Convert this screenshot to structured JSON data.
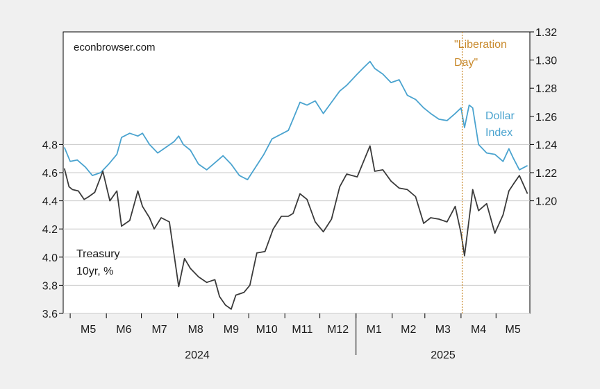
{
  "chart_data": {
    "type": "line",
    "watermark": "econbrowser.com",
    "annotation": {
      "lines": [
        "\"Liberation",
        "Day\""
      ],
      "date": "2025-04-02",
      "color": "#c8892b"
    },
    "x_axis": {
      "month_labels": [
        "M5",
        "M6",
        "M7",
        "M8",
        "M9",
        "M10",
        "M11",
        "M12",
        "M1",
        "M2",
        "M3",
        "M4",
        "M5"
      ],
      "year_labels": [
        "2024",
        "2025"
      ],
      "range": [
        "2024-04-25",
        "2025-05-30"
      ]
    },
    "y_axis_left": {
      "ticks": [
        "3.6",
        "3.8",
        "4.0",
        "4.2",
        "4.4",
        "4.6",
        "4.8"
      ],
      "range": [
        3.6,
        5.6
      ]
    },
    "y_axis_right": {
      "ticks": [
        "1.20",
        "1.22",
        "1.24",
        "1.26",
        "1.28",
        "1.30",
        "1.32"
      ],
      "range": [
        1.12,
        1.32
      ]
    },
    "grid": true,
    "series": [
      {
        "name_lines": [
          "Dollar",
          "Index"
        ],
        "axis": "right",
        "color": "#4aa3cf",
        "points": [
          [
            "2024-04-26",
            1.238
          ],
          [
            "2024-05-01",
            1.228
          ],
          [
            "2024-05-07",
            1.229
          ],
          [
            "2024-05-14",
            1.224
          ],
          [
            "2024-05-20",
            1.218
          ],
          [
            "2024-05-27",
            1.22
          ],
          [
            "2024-06-03",
            1.226
          ],
          [
            "2024-06-10",
            1.233
          ],
          [
            "2024-06-14",
            1.245
          ],
          [
            "2024-06-21",
            1.248
          ],
          [
            "2024-06-28",
            1.246
          ],
          [
            "2024-07-02",
            1.248
          ],
          [
            "2024-07-08",
            1.24
          ],
          [
            "2024-07-15",
            1.234
          ],
          [
            "2024-07-22",
            1.238
          ],
          [
            "2024-07-29",
            1.242
          ],
          [
            "2024-08-02",
            1.246
          ],
          [
            "2024-08-06",
            1.24
          ],
          [
            "2024-08-12",
            1.236
          ],
          [
            "2024-08-19",
            1.226
          ],
          [
            "2024-08-26",
            1.222
          ],
          [
            "2024-09-02",
            1.227
          ],
          [
            "2024-09-09",
            1.232
          ],
          [
            "2024-09-16",
            1.226
          ],
          [
            "2024-09-23",
            1.218
          ],
          [
            "2024-09-30",
            1.215
          ],
          [
            "2024-10-07",
            1.224
          ],
          [
            "2024-10-14",
            1.233
          ],
          [
            "2024-10-21",
            1.244
          ],
          [
            "2024-10-28",
            1.247
          ],
          [
            "2024-11-04",
            1.25
          ],
          [
            "2024-11-08",
            1.258
          ],
          [
            "2024-11-14",
            1.27
          ],
          [
            "2024-11-20",
            1.268
          ],
          [
            "2024-11-27",
            1.271
          ],
          [
            "2024-12-04",
            1.262
          ],
          [
            "2024-12-11",
            1.27
          ],
          [
            "2024-12-18",
            1.278
          ],
          [
            "2024-12-24",
            1.282
          ],
          [
            "2025-01-02",
            1.29
          ],
          [
            "2025-01-08",
            1.295
          ],
          [
            "2025-01-13",
            1.299
          ],
          [
            "2025-01-17",
            1.294
          ],
          [
            "2025-01-24",
            1.29
          ],
          [
            "2025-01-31",
            1.284
          ],
          [
            "2025-02-07",
            1.286
          ],
          [
            "2025-02-14",
            1.275
          ],
          [
            "2025-02-21",
            1.272
          ],
          [
            "2025-02-28",
            1.266
          ],
          [
            "2025-03-06",
            1.262
          ],
          [
            "2025-03-13",
            1.258
          ],
          [
            "2025-03-20",
            1.257
          ],
          [
            "2025-03-27",
            1.262
          ],
          [
            "2025-04-01",
            1.266
          ],
          [
            "2025-04-04",
            1.252
          ],
          [
            "2025-04-08",
            1.268
          ],
          [
            "2025-04-11",
            1.266
          ],
          [
            "2025-04-16",
            1.24
          ],
          [
            "2025-04-23",
            1.234
          ],
          [
            "2025-04-30",
            1.233
          ],
          [
            "2025-05-07",
            1.228
          ],
          [
            "2025-05-12",
            1.237
          ],
          [
            "2025-05-16",
            1.23
          ],
          [
            "2025-05-21",
            1.222
          ],
          [
            "2025-05-28",
            1.225
          ]
        ]
      },
      {
        "name_lines": [
          "Treasury",
          "10yr, %"
        ],
        "axis": "left",
        "color": "#3a3a3a",
        "points": [
          [
            "2024-04-26",
            4.63
          ],
          [
            "2024-04-30",
            4.5
          ],
          [
            "2024-05-03",
            4.48
          ],
          [
            "2024-05-08",
            4.47
          ],
          [
            "2024-05-13",
            4.41
          ],
          [
            "2024-05-17",
            4.43
          ],
          [
            "2024-05-22",
            4.46
          ],
          [
            "2024-05-29",
            4.61
          ],
          [
            "2024-06-04",
            4.4
          ],
          [
            "2024-06-10",
            4.47
          ],
          [
            "2024-06-14",
            4.22
          ],
          [
            "2024-06-21",
            4.26
          ],
          [
            "2024-06-28",
            4.47
          ],
          [
            "2024-07-02",
            4.36
          ],
          [
            "2024-07-08",
            4.28
          ],
          [
            "2024-07-12",
            4.2
          ],
          [
            "2024-07-18",
            4.28
          ],
          [
            "2024-07-25",
            4.25
          ],
          [
            "2024-08-02",
            3.79
          ],
          [
            "2024-08-07",
            3.99
          ],
          [
            "2024-08-12",
            3.92
          ],
          [
            "2024-08-19",
            3.86
          ],
          [
            "2024-08-26",
            3.82
          ],
          [
            "2024-09-02",
            3.84
          ],
          [
            "2024-09-06",
            3.72
          ],
          [
            "2024-09-11",
            3.66
          ],
          [
            "2024-09-16",
            3.63
          ],
          [
            "2024-09-20",
            3.73
          ],
          [
            "2024-09-27",
            3.75
          ],
          [
            "2024-10-02",
            3.8
          ],
          [
            "2024-10-08",
            4.03
          ],
          [
            "2024-10-15",
            4.04
          ],
          [
            "2024-10-22",
            4.2
          ],
          [
            "2024-10-29",
            4.29
          ],
          [
            "2024-11-04",
            4.29
          ],
          [
            "2024-11-08",
            4.31
          ],
          [
            "2024-11-14",
            4.45
          ],
          [
            "2024-11-20",
            4.41
          ],
          [
            "2024-11-27",
            4.25
          ],
          [
            "2024-12-04",
            4.18
          ],
          [
            "2024-12-11",
            4.27
          ],
          [
            "2024-12-18",
            4.5
          ],
          [
            "2024-12-24",
            4.59
          ],
          [
            "2025-01-02",
            4.57
          ],
          [
            "2025-01-08",
            4.69
          ],
          [
            "2025-01-13",
            4.79
          ],
          [
            "2025-01-17",
            4.61
          ],
          [
            "2025-01-24",
            4.62
          ],
          [
            "2025-01-31",
            4.54
          ],
          [
            "2025-02-07",
            4.49
          ],
          [
            "2025-02-14",
            4.48
          ],
          [
            "2025-02-21",
            4.43
          ],
          [
            "2025-02-28",
            4.24
          ],
          [
            "2025-03-06",
            4.28
          ],
          [
            "2025-03-13",
            4.27
          ],
          [
            "2025-03-20",
            4.25
          ],
          [
            "2025-03-27",
            4.36
          ],
          [
            "2025-04-01",
            4.17
          ],
          [
            "2025-04-04",
            4.01
          ],
          [
            "2025-04-09",
            4.34
          ],
          [
            "2025-04-11",
            4.48
          ],
          [
            "2025-04-16",
            4.33
          ],
          [
            "2025-04-23",
            4.38
          ],
          [
            "2025-04-30",
            4.17
          ],
          [
            "2025-05-07",
            4.3
          ],
          [
            "2025-05-12",
            4.47
          ],
          [
            "2025-05-16",
            4.52
          ],
          [
            "2025-05-21",
            4.58
          ],
          [
            "2025-05-28",
            4.45
          ]
        ]
      }
    ]
  }
}
